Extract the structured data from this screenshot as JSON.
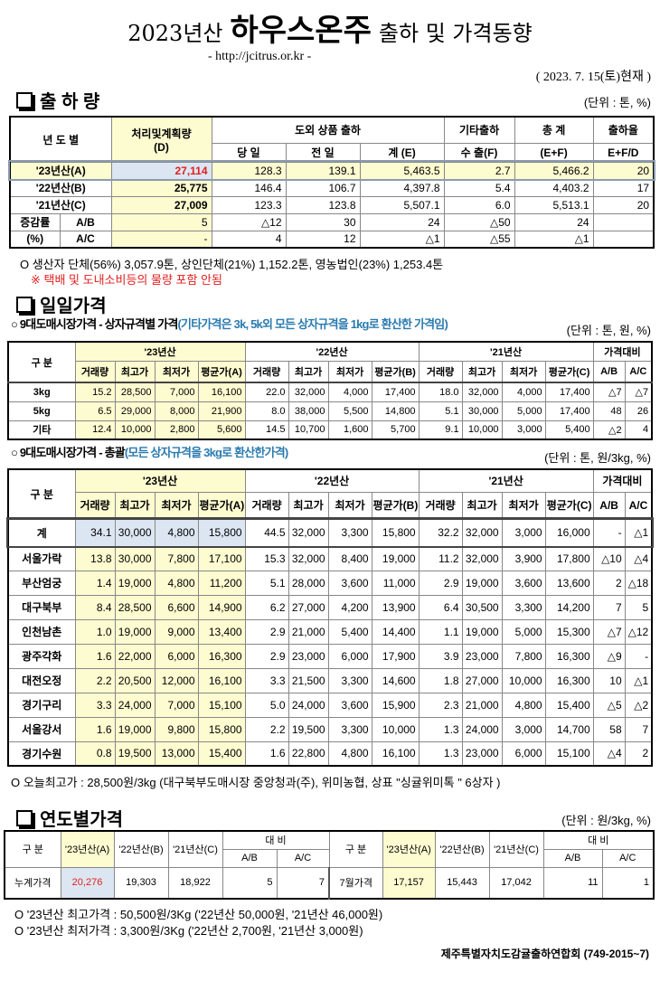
{
  "header": {
    "year": "2023년산",
    "product": "하우스온주",
    "subtitle": "출하 및 가격동향",
    "url": "- http://jcitrus.or.kr -",
    "date": "( 2023. 7. 15(토)현재 )"
  },
  "shipment": {
    "title": "출 하 량",
    "unit": "(단위 : 톤, %)",
    "headers": {
      "year": "년 도 별",
      "plan": "처리및계획량",
      "plan_sub": "(D)",
      "domestic": "도외 상품 출하",
      "today": "당 일",
      "prev": "전 일",
      "sum": "계 (E)",
      "other": "기타출하",
      "export": "수 출(F)",
      "total": "총   계",
      "total_sub": "(E+F)",
      "rate": "출하율",
      "rate_sub": "E+F/D",
      "change": "증감률",
      "pct": "(%)",
      "ab": "A/B",
      "ac": "A/C"
    },
    "rows": [
      [
        "'23년산(A)",
        "27,114",
        "128.3",
        "139.1",
        "5,463.5",
        "2.7",
        "5,466.2",
        "20"
      ],
      [
        "'22년산(B)",
        "25,775",
        "146.4",
        "106.7",
        "4,397.8",
        "5.4",
        "4,403.2",
        "17"
      ],
      [
        "'21년산(C)",
        "27,009",
        "123.3",
        "123.8",
        "5,507.1",
        "6.0",
        "5,513.1",
        "20"
      ]
    ],
    "change_ab": [
      "5",
      "△12",
      "30",
      "24",
      "△50",
      "24",
      ""
    ],
    "change_ac": [
      "-",
      "4",
      "12",
      "△1",
      "△55",
      "△1",
      ""
    ],
    "note1": "O 생산자 단체(56%) 3,057.9톤, 상인단체(21%) 1,152.2톤, 영농법인(23%) 1,253.4톤",
    "note2": "※ 택배 및 도내소비등의 물량 포함 안됨"
  },
  "daily": {
    "title": "일일가격",
    "spec": {
      "heading": "○ 9대도매시장가격 - 상자규격별 가격",
      "heading_note": "(기타가격은 3k, 5k외 모든 상자규격을 1kg로 환산한 가격임)",
      "unit": "(단위 : 톤, 원, %)",
      "rows": [
        [
          "3kg",
          "15.2",
          "28,500",
          "7,000",
          "16,100",
          "22.0",
          "32,000",
          "4,000",
          "17,400",
          "18.0",
          "32,000",
          "4,000",
          "17,400",
          "△7",
          "△7"
        ],
        [
          "5kg",
          "6.5",
          "29,000",
          "8,000",
          "21,900",
          "8.0",
          "38,000",
          "5,500",
          "14,800",
          "5.1",
          "30,000",
          "5,000",
          "17,400",
          "48",
          "26"
        ],
        [
          "기타",
          "12.4",
          "10,000",
          "2,800",
          "5,600",
          "14.5",
          "10,700",
          "1,600",
          "5,700",
          "9.1",
          "10,000",
          "3,000",
          "5,400",
          "△2",
          "4"
        ]
      ]
    },
    "total": {
      "heading": "○ 9대도매시장가격 - 총괄",
      "heading_note": "(모든 상자규격을 3kg로 환산한가격)",
      "unit": "(단위 : 톤, 원/3kg, %)",
      "rows": [
        [
          "계",
          "34.1",
          "30,000",
          "4,800",
          "15,800",
          "44.5",
          "32,000",
          "3,300",
          "15,800",
          "32.2",
          "32,000",
          "3,000",
          "16,000",
          "-",
          "△1"
        ],
        [
          "서울가락",
          "13.8",
          "30,000",
          "7,800",
          "17,100",
          "15.3",
          "32,000",
          "8,400",
          "19,000",
          "11.2",
          "32,000",
          "3,900",
          "17,800",
          "△10",
          "△4"
        ],
        [
          "부산엄궁",
          "1.4",
          "19,000",
          "4,800",
          "11,200",
          "5.1",
          "28,000",
          "3,600",
          "11,000",
          "2.9",
          "19,000",
          "3,600",
          "13,600",
          "2",
          "△18"
        ],
        [
          "대구북부",
          "8.4",
          "28,500",
          "6,600",
          "14,900",
          "6.2",
          "27,000",
          "4,200",
          "13,900",
          "6.4",
          "30,500",
          "3,300",
          "14,200",
          "7",
          "5"
        ],
        [
          "인천남촌",
          "1.0",
          "19,000",
          "9,000",
          "13,400",
          "2.9",
          "21,000",
          "5,400",
          "14,400",
          "1.1",
          "19,000",
          "5,000",
          "15,300",
          "△7",
          "△12"
        ],
        [
          "광주각화",
          "1.6",
          "22,000",
          "6,000",
          "16,300",
          "2.9",
          "23,000",
          "6,000",
          "17,900",
          "3.9",
          "23,000",
          "7,800",
          "16,300",
          "△9",
          "-"
        ],
        [
          "대전오정",
          "2.2",
          "20,500",
          "12,000",
          "16,100",
          "3.3",
          "21,500",
          "3,300",
          "14,600",
          "1.8",
          "27,000",
          "10,000",
          "16,300",
          "10",
          "△1"
        ],
        [
          "경기구리",
          "3.3",
          "24,000",
          "7,000",
          "15,100",
          "5.0",
          "24,000",
          "3,600",
          "15,900",
          "2.3",
          "21,000",
          "4,800",
          "15,400",
          "△5",
          "△2"
        ],
        [
          "서울강서",
          "1.6",
          "19,000",
          "9,800",
          "15,800",
          "2.2",
          "19,500",
          "3,300",
          "10,000",
          "1.3",
          "24,000",
          "3,000",
          "14,700",
          "58",
          "7"
        ],
        [
          "경기수원",
          "0.8",
          "19,500",
          "13,000",
          "15,400",
          "1.6",
          "22,800",
          "4,800",
          "16,100",
          "1.3",
          "23,000",
          "6,000",
          "15,100",
          "△4",
          "2"
        ]
      ]
    },
    "headers": {
      "kind": "구  분",
      "y23": "'23년산",
      "y22": "'22년산",
      "y21": "'21년산",
      "compare": "가격대비",
      "vol": "거래량",
      "max": "최고가",
      "min": "최저가",
      "avgA": "평균가(A)",
      "avgB": "평균가(B)",
      "avgC": "평균가(C)",
      "ab": "A/B",
      "ac": "A/C"
    },
    "note": "O 오늘최고가 : 28,500원/3kg (대구북부도매시장 중앙청과(주), 위미농협, 상표 \"싱귤위미톡 \" 6상자 )"
  },
  "yearly": {
    "title": "연도별가격",
    "unit": "(단위 : 원/3kg, %)",
    "headers": {
      "kind": "구  분",
      "a": "'23년산(A)",
      "b": "'22년산(B)",
      "c": "'21년산(C)",
      "compare": "대    비",
      "ab": "A/B",
      "ac": "A/C"
    },
    "cumulative": [
      "누계가격",
      "20,276",
      "19,303",
      "18,922",
      "5",
      "7"
    ],
    "month": [
      "7월가격",
      "17,157",
      "15,443",
      "17,042",
      "11",
      "1"
    ],
    "note1": "O  '23년산 최고가격 : 50,500원/3Kg ('22년산 50,000원, '21년산 46,000원)",
    "note2": "O  '23년산 최저가격 :   3,300원/3Kg ('22년산  2,700원, '21년산  3,000원)"
  },
  "footer": "제주특별자치도감귤출하연합회 (749-2015~7)"
}
